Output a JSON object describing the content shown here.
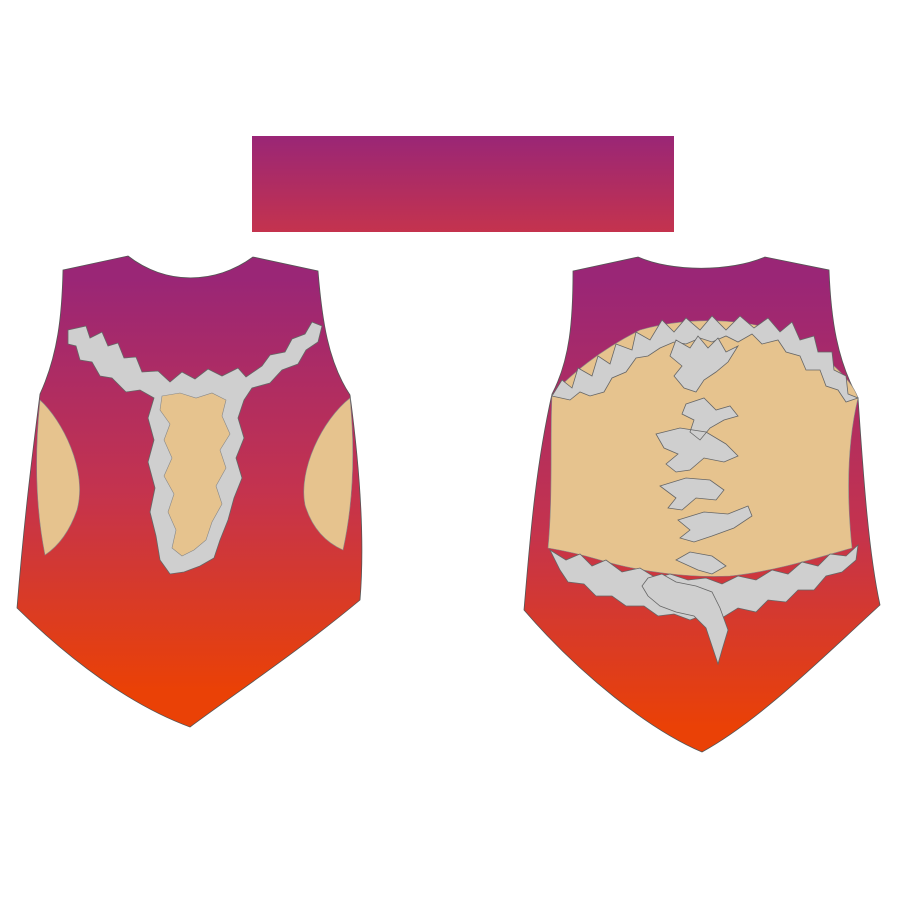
{
  "design": {
    "gradient_top": "#9a2676",
    "gradient_mid": "#c4334e",
    "gradient_bottom": "#ea4106",
    "skin_color": "#e6c38e",
    "trim_color": "#cfcfcf",
    "outline_color": "#555555"
  },
  "pieces": [
    {
      "name": "waistband-swatch"
    },
    {
      "name": "garment-front"
    },
    {
      "name": "garment-back"
    }
  ]
}
